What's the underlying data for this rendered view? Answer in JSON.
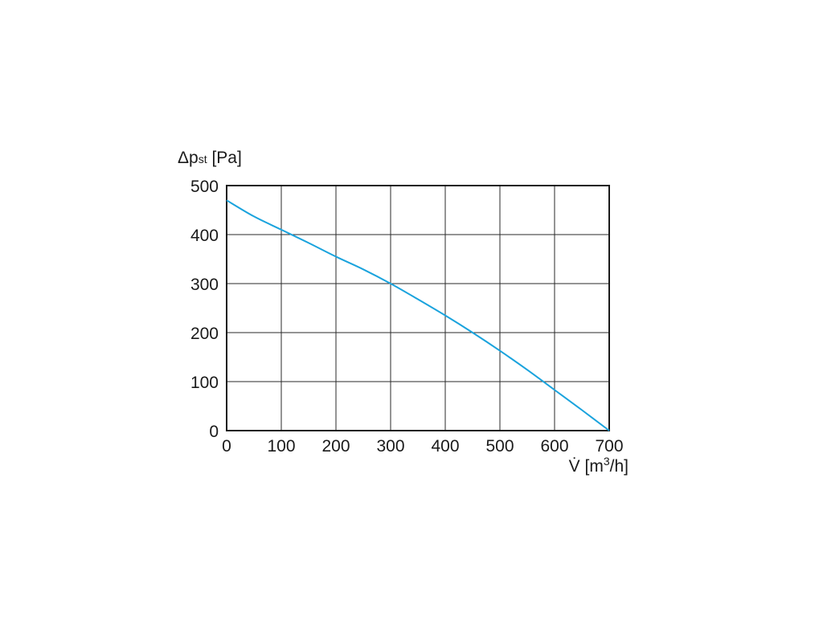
{
  "chart_data": {
    "type": "line",
    "ylabel": {
      "main": "Δp",
      "sub": "st",
      "unit": " [Pa]"
    },
    "xlabel": {
      "main": "V̇",
      "unit_pre": " [m",
      "unit_sup": "3",
      "unit_post": "/h]"
    },
    "xlim": [
      0,
      700
    ],
    "ylim": [
      0,
      500
    ],
    "x_ticks": [
      "0",
      "100",
      "200",
      "300",
      "400",
      "500",
      "600",
      "700"
    ],
    "y_ticks": [
      "0",
      "100",
      "200",
      "300",
      "400",
      "500"
    ],
    "grid": true,
    "series": [
      {
        "color": "#1aa3dd",
        "x": [
          0,
          50,
          100,
          150,
          200,
          250,
          300,
          350,
          400,
          450,
          500,
          550,
          600,
          650,
          700
        ],
        "y": [
          470,
          437,
          410,
          383,
          355,
          329,
          300,
          268,
          235,
          200,
          163,
          124,
          83,
          42,
          0
        ]
      }
    ]
  }
}
